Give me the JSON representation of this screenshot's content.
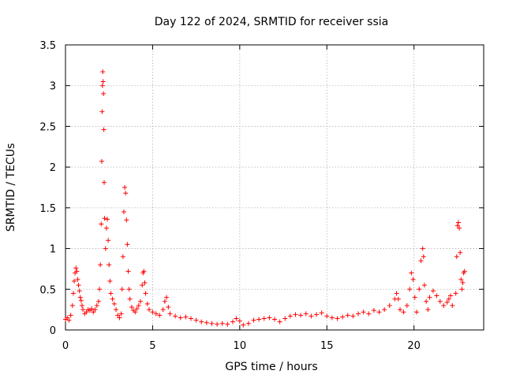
{
  "chart_data": {
    "type": "scatter",
    "title": "Day 122 of 2024, SRMTID for receiver ssia",
    "xlabel": "GPS time / hours",
    "ylabel": "SRMTID / TECUs",
    "xlim": [
      0,
      24
    ],
    "ylim": [
      0,
      3.5
    ],
    "xticks": [
      0,
      5,
      10,
      15,
      20
    ],
    "yticks": [
      0,
      0.5,
      1,
      1.5,
      2,
      2.5,
      3,
      3.5
    ],
    "ytick_labels": [
      "0",
      "0.5",
      "1",
      "1.5",
      "2",
      "2.5",
      "3",
      "3.5"
    ],
    "grid": true,
    "marker": "+",
    "color": "#ff0000",
    "series": [
      {
        "name": "SRMTID",
        "points": [
          [
            0.0,
            0.13
          ],
          [
            0.1,
            0.15
          ],
          [
            0.2,
            0.12
          ],
          [
            0.3,
            0.18
          ],
          [
            0.4,
            0.3
          ],
          [
            0.45,
            0.45
          ],
          [
            0.5,
            0.6
          ],
          [
            0.55,
            0.7
          ],
          [
            0.6,
            0.76
          ],
          [
            0.65,
            0.72
          ],
          [
            0.7,
            0.62
          ],
          [
            0.75,
            0.55
          ],
          [
            0.8,
            0.48
          ],
          [
            0.85,
            0.4
          ],
          [
            0.9,
            0.36
          ],
          [
            0.95,
            0.3
          ],
          [
            1.0,
            0.25
          ],
          [
            1.1,
            0.2
          ],
          [
            1.2,
            0.22
          ],
          [
            1.3,
            0.25
          ],
          [
            1.4,
            0.24
          ],
          [
            1.5,
            0.26
          ],
          [
            1.6,
            0.22
          ],
          [
            1.7,
            0.25
          ],
          [
            1.8,
            0.3
          ],
          [
            1.9,
            0.35
          ],
          [
            1.95,
            0.5
          ],
          [
            2.0,
            0.8
          ],
          [
            2.05,
            1.3
          ],
          [
            2.08,
            2.07
          ],
          [
            2.1,
            2.68
          ],
          [
            2.12,
            3.0
          ],
          [
            2.14,
            3.17
          ],
          [
            2.16,
            3.05
          ],
          [
            2.18,
            2.9
          ],
          [
            2.2,
            2.46
          ],
          [
            2.22,
            1.81
          ],
          [
            2.24,
            1.37
          ],
          [
            2.3,
            1.0
          ],
          [
            2.35,
            1.25
          ],
          [
            2.4,
            1.36
          ],
          [
            2.45,
            1.1
          ],
          [
            2.5,
            0.8
          ],
          [
            2.55,
            0.6
          ],
          [
            2.6,
            0.45
          ],
          [
            2.7,
            0.38
          ],
          [
            2.8,
            0.32
          ],
          [
            2.9,
            0.25
          ],
          [
            3.0,
            0.18
          ],
          [
            3.1,
            0.15
          ],
          [
            3.2,
            0.2
          ],
          [
            3.25,
            0.5
          ],
          [
            3.3,
            0.9
          ],
          [
            3.35,
            1.45
          ],
          [
            3.4,
            1.75
          ],
          [
            3.45,
            1.68
          ],
          [
            3.5,
            1.35
          ],
          [
            3.55,
            1.05
          ],
          [
            3.6,
            0.72
          ],
          [
            3.65,
            0.5
          ],
          [
            3.7,
            0.38
          ],
          [
            3.8,
            0.28
          ],
          [
            3.9,
            0.24
          ],
          [
            4.0,
            0.22
          ],
          [
            4.1,
            0.26
          ],
          [
            4.2,
            0.3
          ],
          [
            4.3,
            0.35
          ],
          [
            4.4,
            0.55
          ],
          [
            4.45,
            0.7
          ],
          [
            4.5,
            0.72
          ],
          [
            4.55,
            0.58
          ],
          [
            4.6,
            0.45
          ],
          [
            4.7,
            0.32
          ],
          [
            4.8,
            0.25
          ],
          [
            5.0,
            0.22
          ],
          [
            5.2,
            0.2
          ],
          [
            5.4,
            0.18
          ],
          [
            5.6,
            0.25
          ],
          [
            5.7,
            0.35
          ],
          [
            5.8,
            0.4
          ],
          [
            5.9,
            0.28
          ],
          [
            6.0,
            0.2
          ],
          [
            6.3,
            0.17
          ],
          [
            6.6,
            0.15
          ],
          [
            6.9,
            0.16
          ],
          [
            7.2,
            0.14
          ],
          [
            7.5,
            0.12
          ],
          [
            7.8,
            0.1
          ],
          [
            8.1,
            0.09
          ],
          [
            8.4,
            0.08
          ],
          [
            8.7,
            0.07
          ],
          [
            9.0,
            0.08
          ],
          [
            9.3,
            0.07
          ],
          [
            9.6,
            0.1
          ],
          [
            9.8,
            0.14
          ],
          [
            10.0,
            0.11
          ],
          [
            10.2,
            0.06
          ],
          [
            10.5,
            0.08
          ],
          [
            10.8,
            0.12
          ],
          [
            11.1,
            0.13
          ],
          [
            11.4,
            0.14
          ],
          [
            11.7,
            0.15
          ],
          [
            12.0,
            0.13
          ],
          [
            12.3,
            0.1
          ],
          [
            12.6,
            0.14
          ],
          [
            12.9,
            0.17
          ],
          [
            13.2,
            0.19
          ],
          [
            13.5,
            0.18
          ],
          [
            13.8,
            0.2
          ],
          [
            14.1,
            0.17
          ],
          [
            14.4,
            0.19
          ],
          [
            14.7,
            0.21
          ],
          [
            15.0,
            0.17
          ],
          [
            15.3,
            0.15
          ],
          [
            15.6,
            0.14
          ],
          [
            15.9,
            0.16
          ],
          [
            16.2,
            0.18
          ],
          [
            16.5,
            0.17
          ],
          [
            16.8,
            0.2
          ],
          [
            17.1,
            0.22
          ],
          [
            17.4,
            0.2
          ],
          [
            17.7,
            0.24
          ],
          [
            18.0,
            0.22
          ],
          [
            18.3,
            0.25
          ],
          [
            18.6,
            0.3
          ],
          [
            18.9,
            0.38
          ],
          [
            19.0,
            0.45
          ],
          [
            19.1,
            0.38
          ],
          [
            19.2,
            0.25
          ],
          [
            19.4,
            0.22
          ],
          [
            19.6,
            0.3
          ],
          [
            19.75,
            0.5
          ],
          [
            19.85,
            0.7
          ],
          [
            19.95,
            0.62
          ],
          [
            20.05,
            0.4
          ],
          [
            20.15,
            0.22
          ],
          [
            20.3,
            0.5
          ],
          [
            20.4,
            0.85
          ],
          [
            20.5,
            1.0
          ],
          [
            20.55,
            0.9
          ],
          [
            20.6,
            0.55
          ],
          [
            20.7,
            0.35
          ],
          [
            20.8,
            0.25
          ],
          [
            20.9,
            0.4
          ],
          [
            21.1,
            0.48
          ],
          [
            21.3,
            0.42
          ],
          [
            21.5,
            0.35
          ],
          [
            21.7,
            0.3
          ],
          [
            21.9,
            0.34
          ],
          [
            22.0,
            0.38
          ],
          [
            22.1,
            0.42
          ],
          [
            22.2,
            0.3
          ],
          [
            22.4,
            0.45
          ],
          [
            22.45,
            0.9
          ],
          [
            22.5,
            1.28
          ],
          [
            22.55,
            1.32
          ],
          [
            22.6,
            1.25
          ],
          [
            22.65,
            0.95
          ],
          [
            22.7,
            0.62
          ],
          [
            22.75,
            0.5
          ],
          [
            22.8,
            0.58
          ],
          [
            22.85,
            0.7
          ],
          [
            22.9,
            0.72
          ]
        ]
      }
    ]
  }
}
